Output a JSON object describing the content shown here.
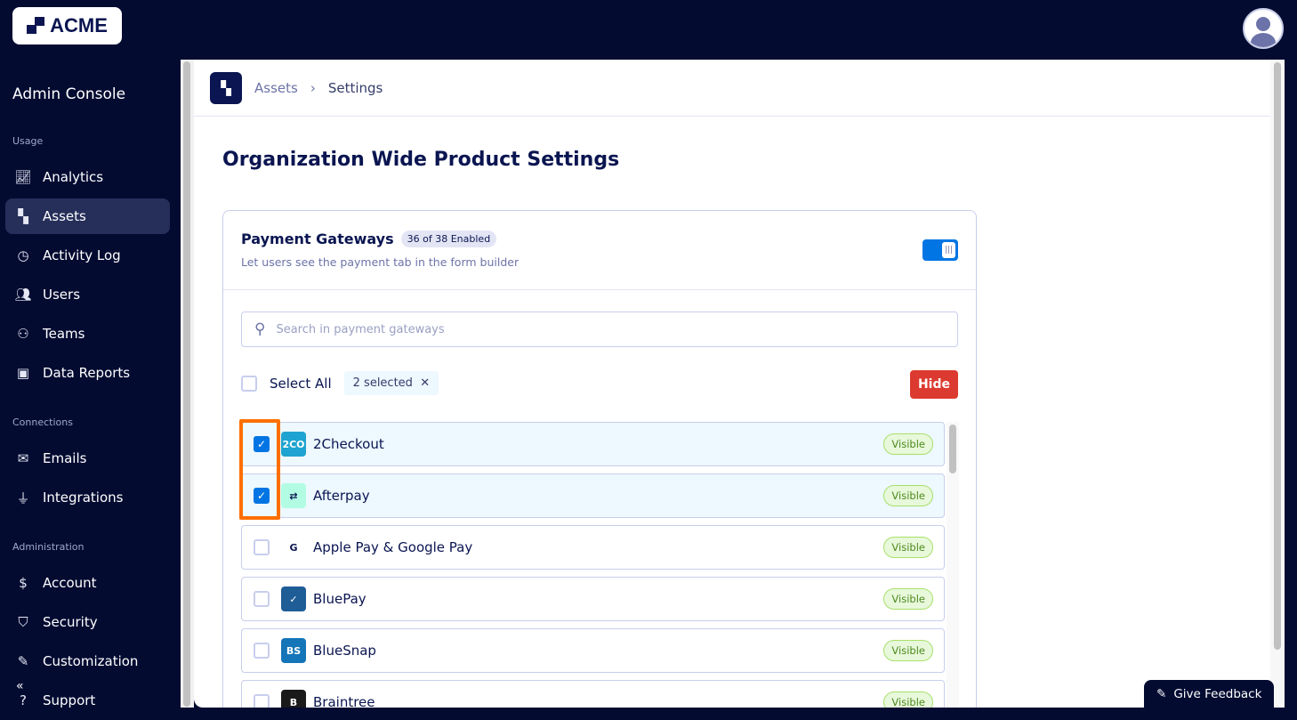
{
  "brand": {
    "logo_text": "ACME"
  },
  "sidebar": {
    "title": "Admin Console",
    "sections": [
      {
        "label": "Usage",
        "items": [
          {
            "label": "Analytics",
            "icon": "chart-line-icon"
          },
          {
            "label": "Assets",
            "icon": "assets-grid-icon",
            "active": true
          },
          {
            "label": "Activity Log",
            "icon": "history-clock-icon"
          },
          {
            "label": "Users",
            "icon": "users-icon"
          },
          {
            "label": "Teams",
            "icon": "teams-icon"
          },
          {
            "label": "Data Reports",
            "icon": "folder-search-icon"
          }
        ]
      },
      {
        "label": "Connections",
        "items": [
          {
            "label": "Emails",
            "icon": "envelope-icon"
          },
          {
            "label": "Integrations",
            "icon": "plug-icon"
          }
        ]
      },
      {
        "label": "Administration",
        "items": [
          {
            "label": "Account",
            "icon": "invoice-icon"
          },
          {
            "label": "Security",
            "icon": "shield-check-icon"
          },
          {
            "label": "Customization",
            "icon": "paint-roller-icon"
          },
          {
            "label": "Support",
            "icon": "help-chat-icon"
          }
        ]
      }
    ],
    "collapse_icon": "chevrons-left-icon"
  },
  "breadcrumb": {
    "items": [
      "Assets",
      "Settings"
    ]
  },
  "page": {
    "title": "Organization Wide Product Settings"
  },
  "card": {
    "title": "Payment Gateways",
    "badge": "36 of 38 Enabled",
    "subtitle": "Let users see the payment tab in the form builder",
    "toggle_on": true,
    "search_placeholder": "Search in payment gateways",
    "search_value": "",
    "select_all_label": "Select All",
    "selected_chip": "2 selected",
    "hide_label": "Hide",
    "gateways": [
      {
        "name": "2Checkout",
        "status": "Visible",
        "checked": true,
        "logo_text": "2CO",
        "color": "#1fa3d0"
      },
      {
        "name": "Afterpay",
        "status": "Visible",
        "checked": true,
        "logo_text": "⇄",
        "color": "#b2fce4"
      },
      {
        "name": "Apple Pay & Google Pay",
        "status": "Visible",
        "checked": false,
        "logo_text": "G",
        "color": "#ffffff"
      },
      {
        "name": "BluePay",
        "status": "Visible",
        "checked": false,
        "logo_text": "✓",
        "color": "#1f5d96"
      },
      {
        "name": "BlueSnap",
        "status": "Visible",
        "checked": false,
        "logo_text": "BS",
        "color": "#1475b8"
      },
      {
        "name": "Braintree",
        "status": "Visible",
        "checked": false,
        "logo_text": "B",
        "color": "#1a1a1a"
      }
    ]
  },
  "feedback": {
    "label": "Give Feedback"
  },
  "colors": {
    "sidebar_bg": "#030b31",
    "accent": "#0075e3",
    "danger": "#dc3a30",
    "highlight": "#ff6f00"
  }
}
